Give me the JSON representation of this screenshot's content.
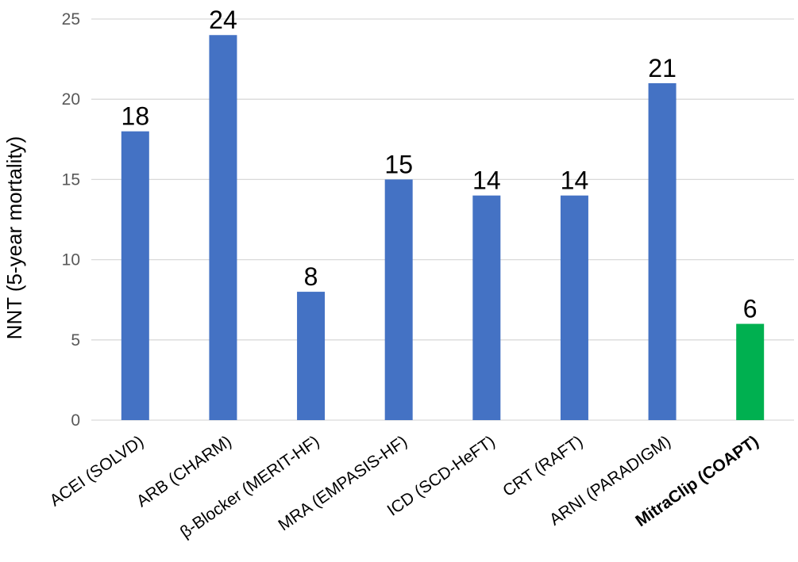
{
  "chart_data": {
    "type": "bar",
    "title": "",
    "xlabel": "",
    "ylabel": "NNT (5-year mortality)",
    "ylim": [
      0,
      25
    ],
    "yticks": [
      0,
      5,
      10,
      15,
      20,
      25
    ],
    "grid": true,
    "legend": "none",
    "colors": {
      "default": "#4472C4",
      "highlight": "#00B050"
    },
    "categories": [
      "ACEI (SOLVD)",
      "ARB (CHARM)",
      "β-Blocker (MERIT-HF)",
      "MRA (EMPASIS-HF)",
      "ICD (SCD-HeFT)",
      "CRT (RAFT)",
      "ARNI (PARADIGM)",
      "MitraClip (COAPT)"
    ],
    "values": [
      18,
      24,
      8,
      15,
      14,
      14,
      21,
      6
    ],
    "highlight": [
      false,
      false,
      false,
      false,
      false,
      false,
      false,
      true
    ]
  }
}
